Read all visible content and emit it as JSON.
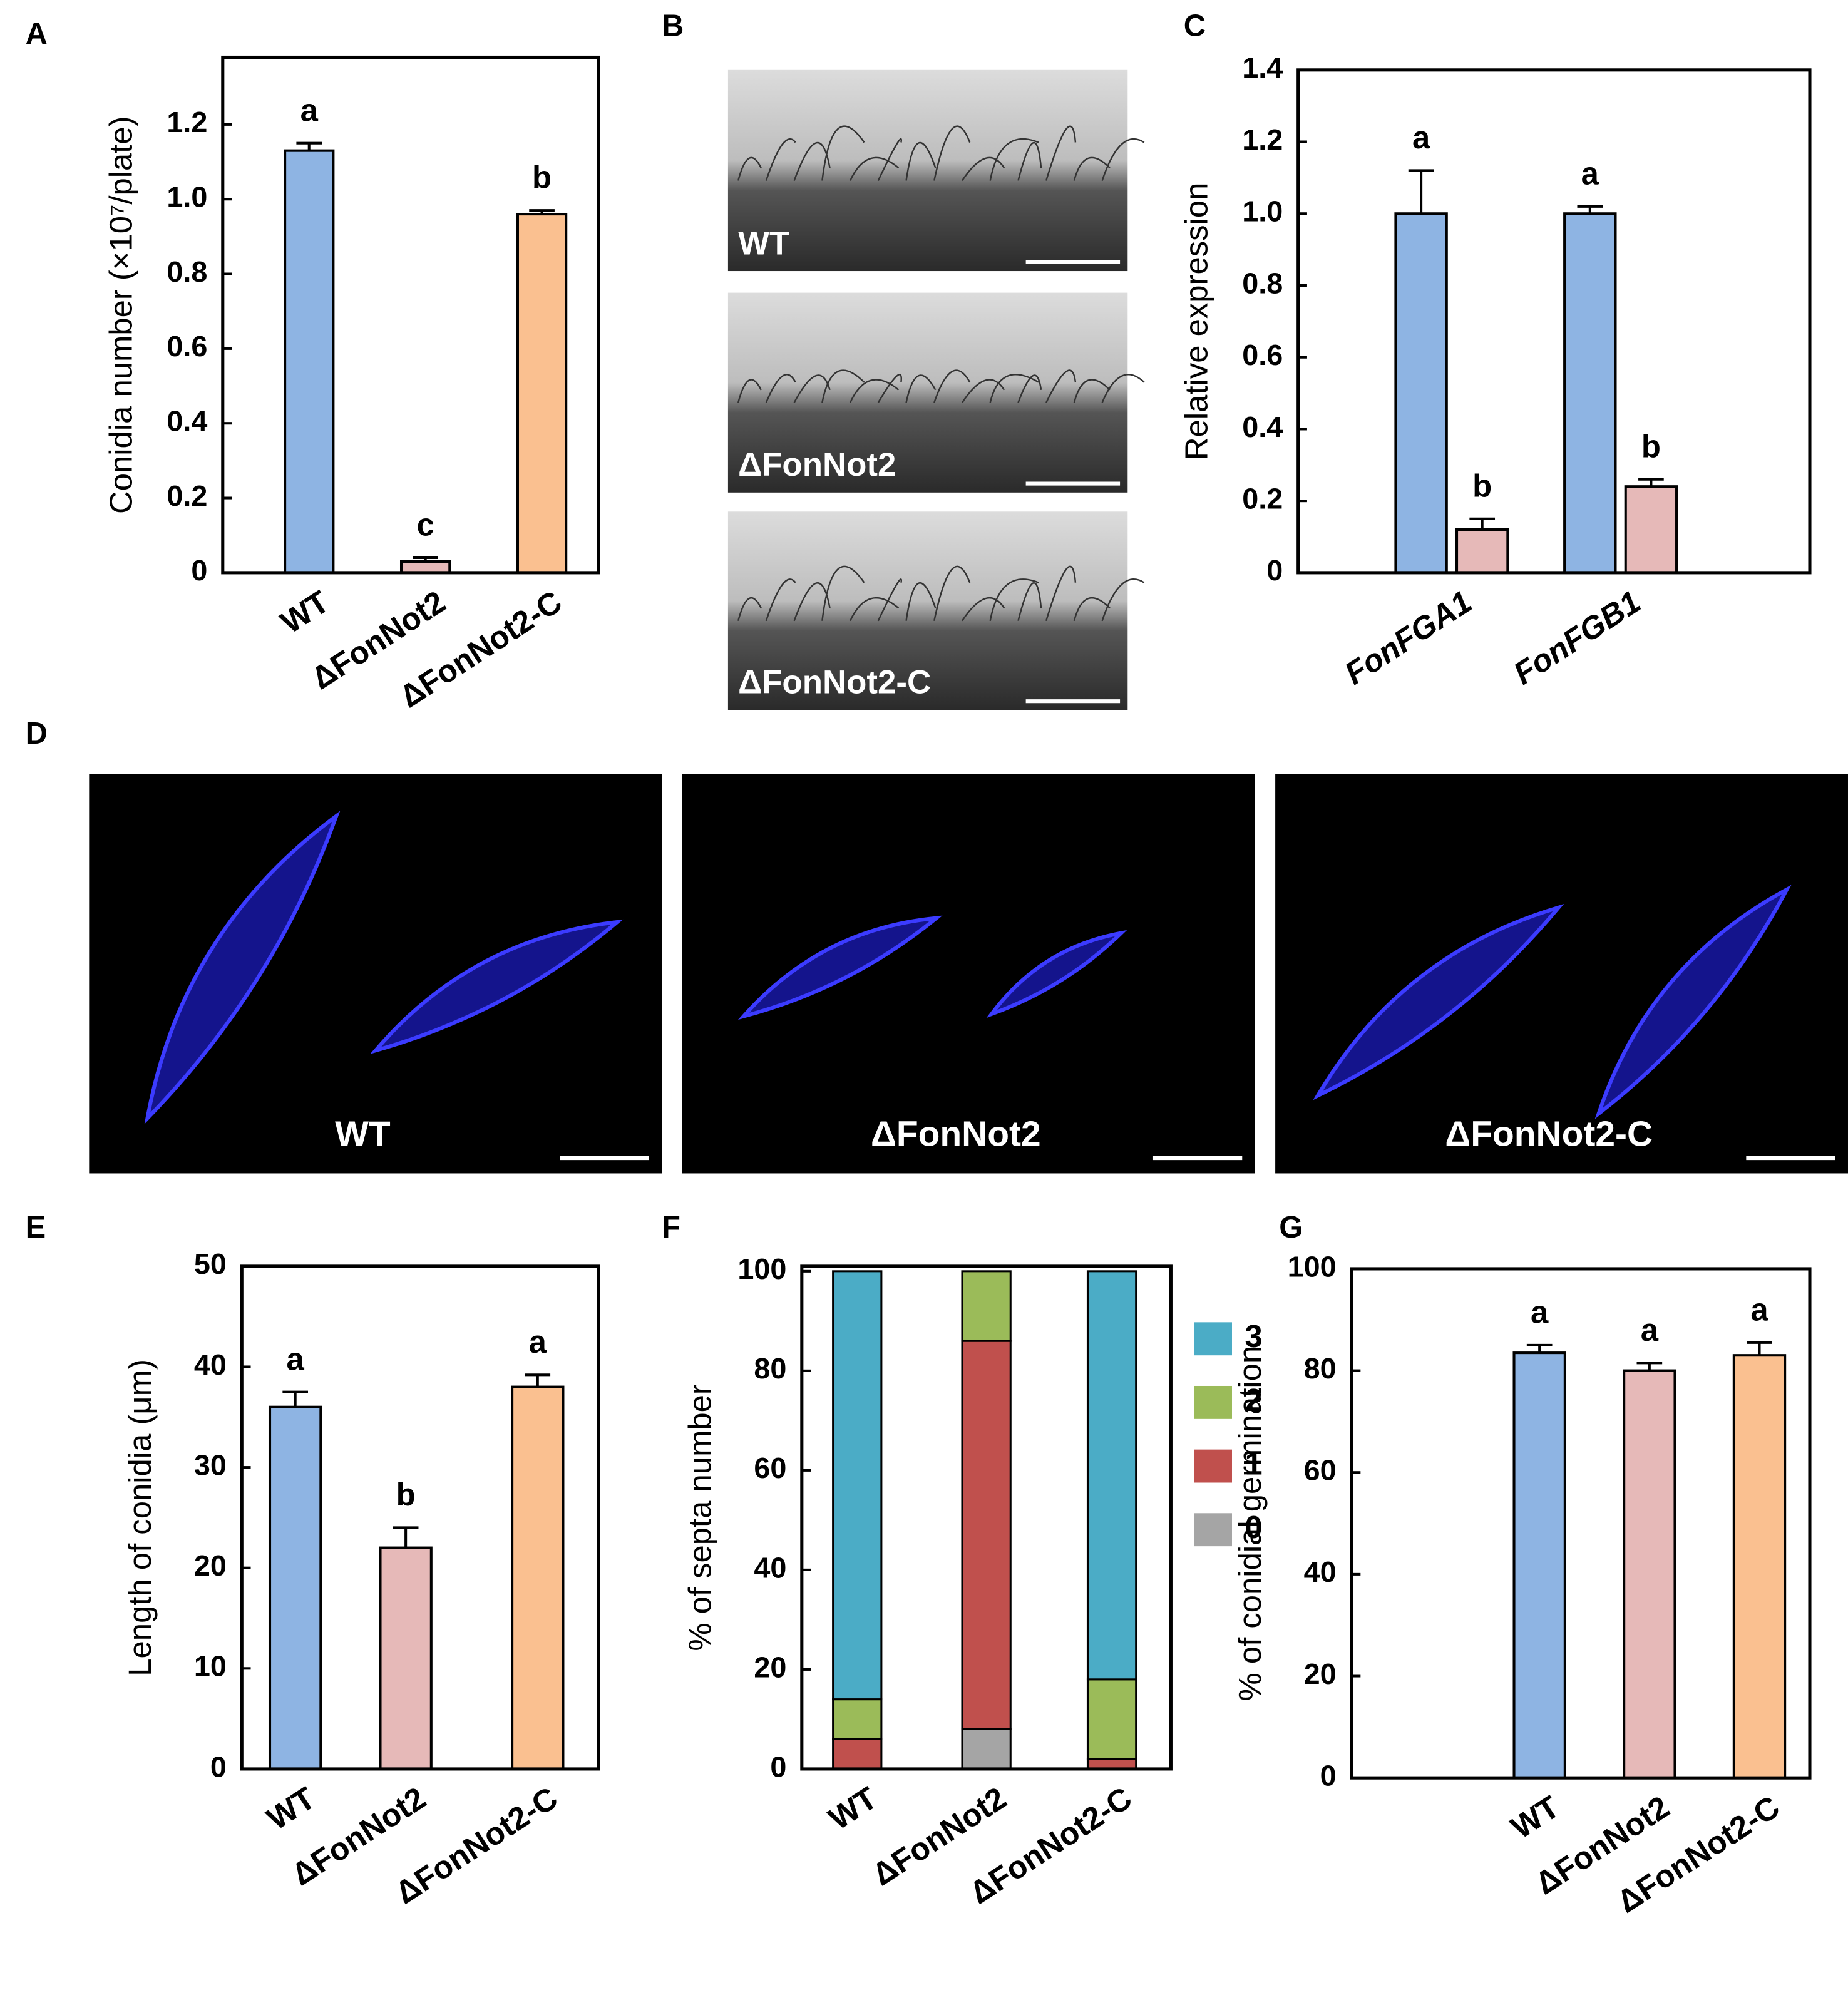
{
  "chart_data": [
    {
      "type": "bar",
      "panel": "A",
      "ylabel": "Conidia number (×10⁷/plate)",
      "categories": [
        "WT",
        "ΔFonNot2",
        "ΔFonNot2-C"
      ],
      "values": [
        1.13,
        0.03,
        0.96
      ],
      "errors": [
        0.02,
        0.01,
        0.01
      ],
      "annotations": [
        "a",
        "c",
        "b"
      ],
      "colors": [
        "#8eb4e3",
        "#e6b9b8",
        "#fac090"
      ],
      "ylim": [
        0,
        1.38
      ],
      "yticks": [
        0,
        0.2,
        0.4,
        0.6,
        0.8,
        {
          "value": 1,
          "label": "1.0"
        },
        1.2
      ]
    },
    {
      "type": "bar",
      "panel": "C",
      "ylabel": "Relative expression",
      "categories": [
        "FonFGA1",
        "FonFGB1"
      ],
      "series": [
        {
          "color": "#8eb4e3",
          "values": [
            1.0,
            1.0
          ],
          "errors": [
            0.12,
            0.02
          ],
          "annotations": [
            "a",
            "a"
          ]
        },
        {
          "color": "#e6b9b8",
          "values": [
            0.12,
            0.24
          ],
          "errors": [
            0.03,
            0.02
          ],
          "annotations": [
            "b",
            "b"
          ]
        }
      ],
      "ylim": [
        0,
        1.4
      ],
      "yticks": [
        0,
        0.2,
        0.4,
        0.6,
        0.8,
        {
          "value": 1,
          "label": "1.0"
        },
        1.2,
        1.4
      ]
    },
    {
      "type": "bar",
      "panel": "E",
      "ylabel": "Length of conidia (μm)",
      "categories": [
        "WT",
        "ΔFonNot2",
        "ΔFonNot2-C"
      ],
      "values": [
        36,
        22,
        38
      ],
      "errors": [
        1.5,
        2,
        1.2
      ],
      "annotations": [
        "a",
        "b",
        "a"
      ],
      "colors": [
        "#8eb4e3",
        "#e6b9b8",
        "#fac090"
      ],
      "ylim": [
        0,
        50
      ],
      "yticks": [
        0,
        10,
        20,
        30,
        40,
        50
      ]
    },
    {
      "type": "bar",
      "stacked": true,
      "panel": "F",
      "ylabel": "% of septa number",
      "categories": [
        "WT",
        "ΔFonNot2",
        "ΔFonNot2-C"
      ],
      "series": [
        {
          "name": "0",
          "color": "#a5a5a5",
          "values": [
            0,
            8,
            0
          ]
        },
        {
          "name": "1",
          "color": "#c0504d",
          "values": [
            6,
            78,
            2
          ]
        },
        {
          "name": "2",
          "color": "#9bbb59",
          "values": [
            8,
            14,
            16
          ]
        },
        {
          "name": "3",
          "color": "#4bacc6",
          "values": [
            86,
            0,
            82
          ]
        }
      ],
      "ylim": [
        0,
        101
      ],
      "yticks": [
        0,
        20,
        40,
        60,
        80,
        100
      ]
    },
    {
      "type": "bar",
      "panel": "G",
      "ylabel": "% of conidial germination",
      "categories": [
        "WT",
        "ΔFonNot2",
        "ΔFonNot2-C"
      ],
      "values": [
        83.5,
        80,
        83
      ],
      "errors": [
        1.5,
        1.5,
        2.5
      ],
      "annotations": [
        "a",
        "a",
        "a"
      ],
      "colors": [
        "#8eb4e3",
        "#e6b9b8",
        "#fac090"
      ],
      "ylim": [
        0,
        100
      ],
      "yticks": [
        0,
        20,
        40,
        60,
        80,
        100
      ]
    }
  ],
  "images": [
    {
      "panel": "B",
      "labels": [
        "WT",
        "ΔFonNot2",
        "ΔFonNot2-C"
      ]
    },
    {
      "panel": "D",
      "labels": [
        "WT",
        "ΔFonNot2",
        "ΔFonNot2-C"
      ]
    }
  ]
}
